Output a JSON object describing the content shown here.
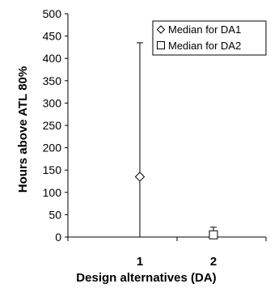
{
  "chart_data": {
    "type": "scatter",
    "xlabel": "Design alternatives (DA)",
    "ylabel": "Hours above ATL 80%",
    "ylim": [
      0,
      500
    ],
    "yticks": [
      0,
      50,
      100,
      150,
      200,
      250,
      300,
      350,
      400,
      450,
      500
    ],
    "categories": [
      "1",
      "2"
    ],
    "grid": false,
    "legend_position": "top-right",
    "series": [
      {
        "name": "Median for DA1",
        "marker": "diamond",
        "points": [
          {
            "x": "1",
            "y": 135,
            "low": 0,
            "high": 435
          }
        ]
      },
      {
        "name": "Median for DA2",
        "marker": "square",
        "points": [
          {
            "x": "2",
            "y": 5,
            "low": 0,
            "high": 22
          }
        ]
      }
    ]
  }
}
